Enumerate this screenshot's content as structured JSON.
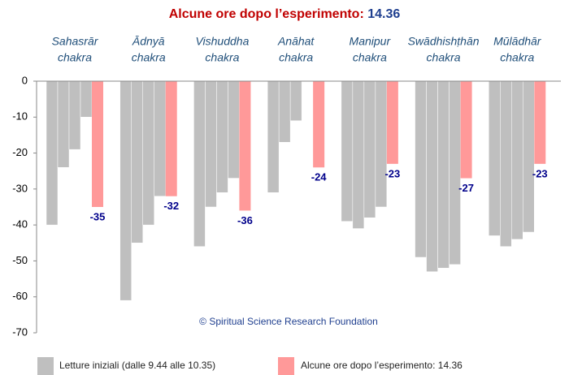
{
  "chart_data": {
    "type": "grouped-bar",
    "title": [
      "Alcune ore dopo l’esperimento:",
      "14.36"
    ],
    "categories": [
      [
        "Sahasrār",
        "chakra"
      ],
      [
        "Ādnyā",
        "chakra"
      ],
      [
        "Vishuddha",
        "chakra"
      ],
      [
        "Anāhat",
        "chakra"
      ],
      [
        "Manipur",
        "chakra"
      ],
      [
        "Swādhishṭhān",
        "chakra"
      ],
      [
        "Mūlādhār",
        "chakra"
      ]
    ],
    "series": [
      {
        "name": "Letture iniziali (dalle 9.44 alle 10.35)",
        "color": "#bfbfbf",
        "values": [
          [
            -40,
            -24,
            -19,
            -10
          ],
          [
            -61,
            -45,
            -40,
            -32
          ],
          [
            -46,
            -35,
            -31,
            -27
          ],
          [
            -31,
            -17,
            -11,
            0
          ],
          [
            -39,
            -41,
            -38,
            -35
          ],
          [
            -49,
            -53,
            -52,
            -51
          ],
          [
            -43,
            -46,
            -44,
            -42
          ]
        ]
      },
      {
        "name": "Alcune ore dopo l’esperimento: 14.36",
        "color": "#ff9999",
        "values": [
          -35,
          -32,
          -36,
          -24,
          -23,
          -27,
          -23
        ]
      }
    ],
    "ylim": [
      -70,
      0
    ],
    "yticks": [
      0,
      -10,
      -20,
      -30,
      -40,
      -50,
      -60,
      -70
    ],
    "annotation": "© Spiritual Science Research Foundation"
  }
}
